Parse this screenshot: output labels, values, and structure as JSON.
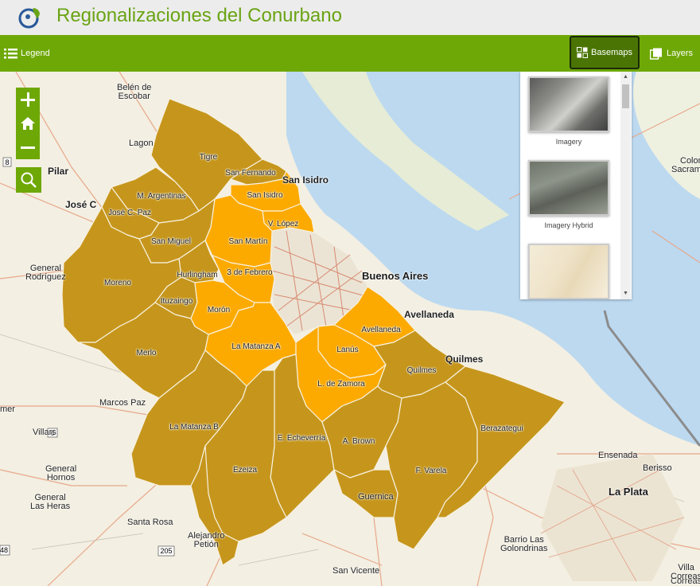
{
  "header": {
    "title": "Regionalizaciones del Conurbano",
    "logo_icon": "globe-leaf-icon"
  },
  "toolbar": {
    "legend_label": "Legend",
    "basemaps_label": "Basemaps",
    "layers_label": "Layers"
  },
  "colors": {
    "brand_green": "#6ea806",
    "district_dark": "#c6961c",
    "district_light": "#fcaa00",
    "water": "#bcd9f0"
  },
  "zoom": {
    "zoom_in_icon": "plus-icon",
    "home_icon": "home-icon",
    "zoom_out_icon": "minus-icon",
    "search_icon": "search-icon"
  },
  "basemap_panel": {
    "items": [
      {
        "label": "Imagery"
      },
      {
        "label": "Imagery Hybrid"
      },
      {
        "label": ""
      }
    ]
  },
  "districts": [
    {
      "name": "Tigre",
      "shade": "dark"
    },
    {
      "name": "San Fernando",
      "shade": "dark"
    },
    {
      "name": "San Isidro",
      "shade": "light"
    },
    {
      "name": "V. López",
      "shade": "light"
    },
    {
      "name": "San Martín",
      "shade": "light"
    },
    {
      "name": "M. Argentinas",
      "shade": "dark"
    },
    {
      "name": "José C. Paz",
      "shade": "dark"
    },
    {
      "name": "San Miguel",
      "shade": "dark"
    },
    {
      "name": "Hurlingham",
      "shade": "dark"
    },
    {
      "name": "3 de Febrero",
      "shade": "light"
    },
    {
      "name": "Moreno",
      "shade": "dark"
    },
    {
      "name": "Ituzaingo",
      "shade": "dark"
    },
    {
      "name": "Morón",
      "shade": "light"
    },
    {
      "name": "Merlo",
      "shade": "dark"
    },
    {
      "name": "La Matanza A",
      "shade": "light"
    },
    {
      "name": "La Matanza B",
      "shade": "dark"
    },
    {
      "name": "Avellaneda",
      "shade": "light"
    },
    {
      "name": "Lanús",
      "shade": "light"
    },
    {
      "name": "L. de Zamora",
      "shade": "light"
    },
    {
      "name": "Quilmes",
      "shade": "dark"
    },
    {
      "name": "E. Echeverría",
      "shade": "dark"
    },
    {
      "name": "A. Brown",
      "shade": "dark"
    },
    {
      "name": "Ezeiza",
      "shade": "dark"
    },
    {
      "name": "F. Varela",
      "shade": "dark"
    },
    {
      "name": "Berazategui",
      "shade": "dark"
    }
  ],
  "places": [
    {
      "name": "Belén de\nEscobar"
    },
    {
      "name": "Lagon"
    },
    {
      "name": "Pilar"
    },
    {
      "name": "José C"
    },
    {
      "name": "General\nRodríguez"
    },
    {
      "name": "Marcos Paz"
    },
    {
      "name": "Villars"
    },
    {
      "name": "General\nHornos"
    },
    {
      "name": "General\nLas Heras"
    },
    {
      "name": "Santa Rosa"
    },
    {
      "name": "Alejandro\nPetión"
    },
    {
      "name": "San Vicente"
    },
    {
      "name": "Guernica"
    },
    {
      "name": "Barrio Las\nGolondrinas"
    },
    {
      "name": "La Plata"
    },
    {
      "name": "Ensenada"
    },
    {
      "name": "Berisso"
    },
    {
      "name": "Buenos Aires"
    },
    {
      "name": "San Isidro"
    },
    {
      "name": "Avellaneda"
    },
    {
      "name": "Quilmes"
    },
    {
      "name": "Colonia\nSacramento"
    },
    {
      "name": "Correas"
    },
    {
      "name": "Villa\nCorreas"
    },
    {
      "name": "mer"
    }
  ],
  "road_shields": [
    {
      "num": "8"
    },
    {
      "num": "6"
    },
    {
      "num": "205"
    },
    {
      "num": "48"
    }
  ]
}
